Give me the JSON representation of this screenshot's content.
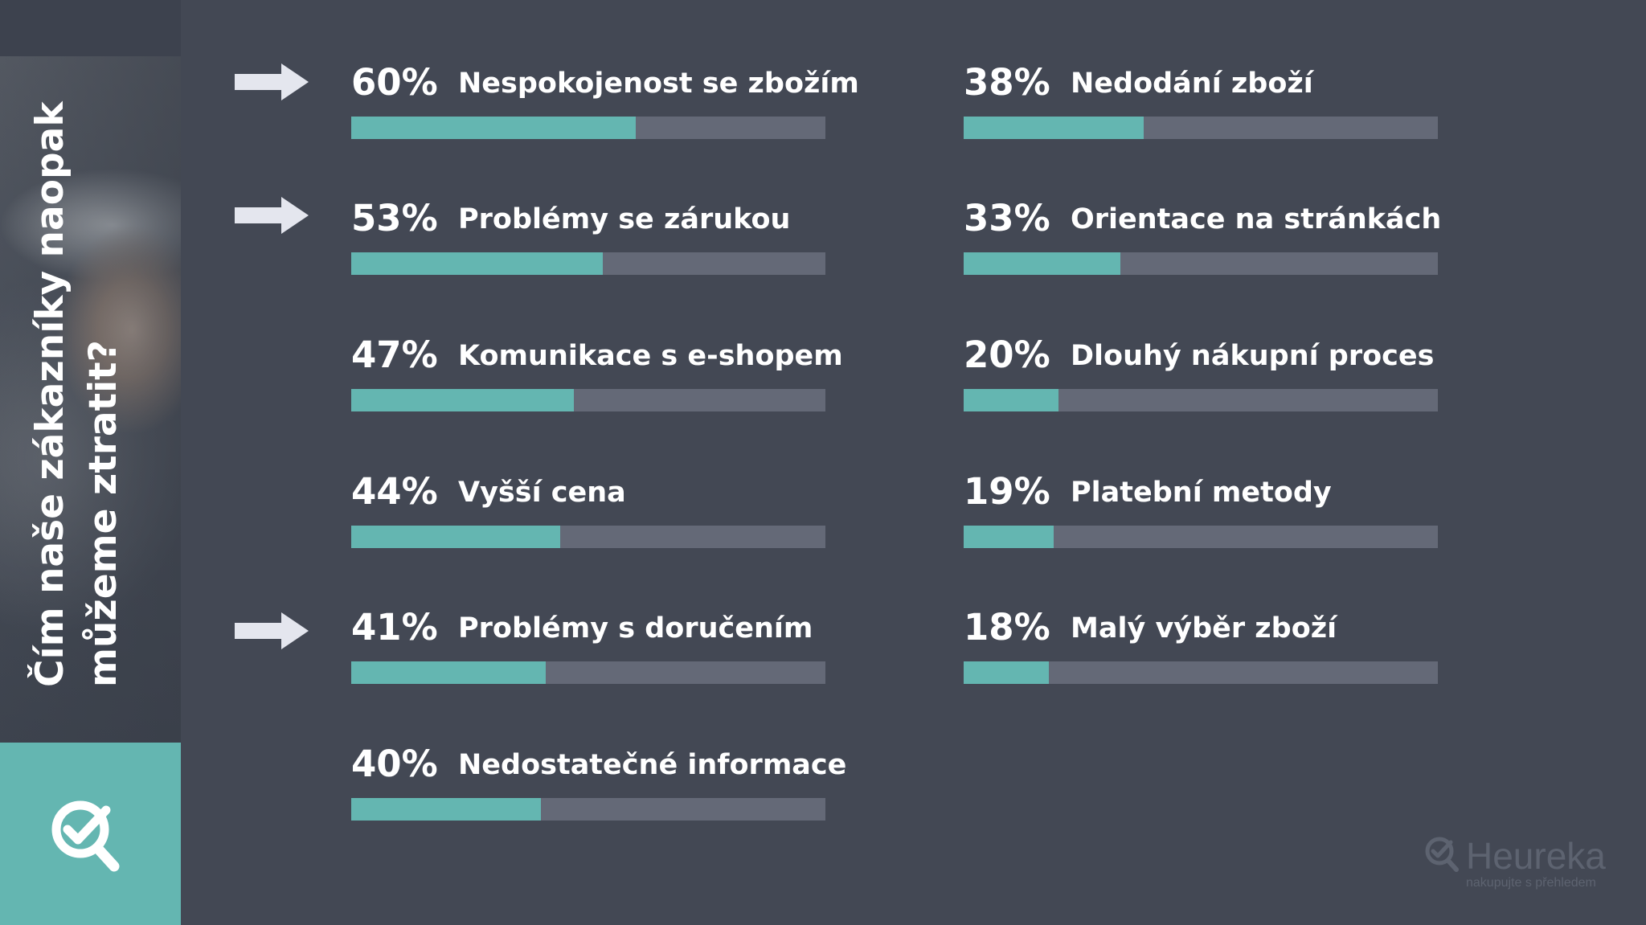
{
  "sidebar": {
    "title_line1": "Čím naše zákazníky naopak",
    "title_line2": "můžeme ztratit?",
    "badge_icon": "magnifier-check-icon",
    "photo": "person-photo"
  },
  "logo": {
    "name": "Heureka",
    "tagline": "nakupujte s přehledem",
    "icon": "magnifier-check-icon"
  },
  "colors": {
    "background": "#434854",
    "accent": "#64b6b1",
    "track": "#646977",
    "text": "#ffffff"
  },
  "chart_data": {
    "type": "bar",
    "orientation": "horizontal",
    "xlim": [
      0,
      100
    ],
    "unit": "%",
    "bars": [
      {
        "value": 60,
        "value_label": "60%",
        "label": "Nespokojenost se zbožím",
        "highlighted": true
      },
      {
        "value": 53,
        "value_label": "53%",
        "label": "Problémy se zárukou",
        "highlighted": true
      },
      {
        "value": 47,
        "value_label": "47%",
        "label": "Komunikace s e-shopem",
        "highlighted": false
      },
      {
        "value": 44,
        "value_label": "44%",
        "label": "Vyšší cena",
        "highlighted": false
      },
      {
        "value": 41,
        "value_label": "41%",
        "label": "Problémy s doručením",
        "highlighted": true
      },
      {
        "value": 40,
        "value_label": "40%",
        "label": "Nedostatečné informace",
        "highlighted": false
      },
      {
        "value": 38,
        "value_label": "38%",
        "label": "Nedodání zboží",
        "highlighted": false
      },
      {
        "value": 33,
        "value_label": "33%",
        "label": "Orientace na stránkách",
        "highlighted": false
      },
      {
        "value": 20,
        "value_label": "20%",
        "label": "Dlouhý nákupní proces",
        "highlighted": false
      },
      {
        "value": 19,
        "value_label": "19%",
        "label": "Platební metody",
        "highlighted": false
      },
      {
        "value": 18,
        "value_label": "18%",
        "label": "Malý výběr zboží",
        "highlighted": false
      }
    ]
  }
}
